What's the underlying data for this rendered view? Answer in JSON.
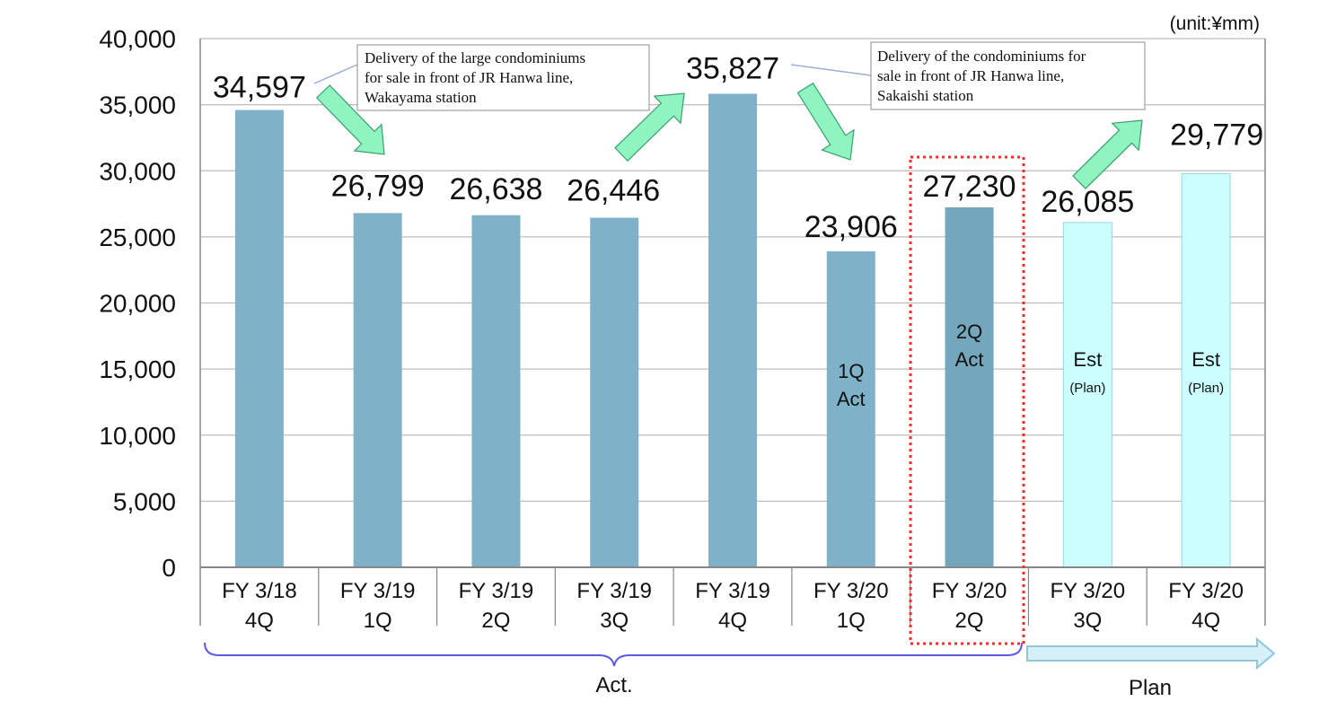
{
  "unit_label": "(unit:¥mm)",
  "group_labels": {
    "actual": "Act.",
    "plan": "Plan"
  },
  "annotations": [
    {
      "lines": [
        "Delivery  of the large condominiums",
        "for sale in front of JR Hanwa line,",
        "Wakayama station"
      ]
    },
    {
      "lines": [
        "Delivery  of the condominiums for",
        "sale in front of JR Hanwa line,",
        "Sakaishi station"
      ]
    }
  ],
  "colors": {
    "actual_bar": "#7fb2c8",
    "highlight_bar": "#74a6bc",
    "plan_bar": "#ccffff",
    "plan_bar_border": "#9ad6e4",
    "arrow_fill": "#8ff5c0",
    "arrow_stroke": "#3a9e70",
    "highlight_box": "#ff2a2a",
    "brace": "#5a5ae0",
    "grid": "#bdbdbd",
    "axis": "#888888"
  },
  "chart_data": {
    "type": "bar",
    "categories": [
      "FY 3/18\n4Q",
      "FY 3/19\n1Q",
      "FY 3/19\n2Q",
      "FY 3/19\n3Q",
      "FY 3/19\n4Q",
      "FY 3/20\n1Q",
      "FY 3/20\n2Q",
      "FY 3/20\n3Q",
      "FY 3/20\n4Q"
    ],
    "values": [
      34597,
      26799,
      26638,
      26446,
      35827,
      23906,
      27230,
      26085,
      29779
    ],
    "data_labels": [
      "34,597",
      "26,799",
      "26,638",
      "26,446",
      "35,827",
      "23,906",
      "27,230",
      "26,085",
      "29,779"
    ],
    "bar_kinds": [
      "actual",
      "actual",
      "actual",
      "actual",
      "actual",
      "actual",
      "highlight",
      "plan",
      "plan"
    ],
    "bar_texts": [
      [],
      [],
      [],
      [],
      [],
      [
        "1Q",
        "Act"
      ],
      [
        "2Q",
        "Act"
      ],
      [
        "Est",
        "(Plan)"
      ],
      [
        "Est",
        "(Plan)"
      ]
    ],
    "yticks": [
      "0",
      "5,000",
      "10,000",
      "15,000",
      "20,000",
      "25,000",
      "30,000",
      "35,000",
      "40,000"
    ],
    "ylim": [
      0,
      40000
    ],
    "grid": true,
    "title": "",
    "xlabel": "",
    "ylabel": ""
  }
}
